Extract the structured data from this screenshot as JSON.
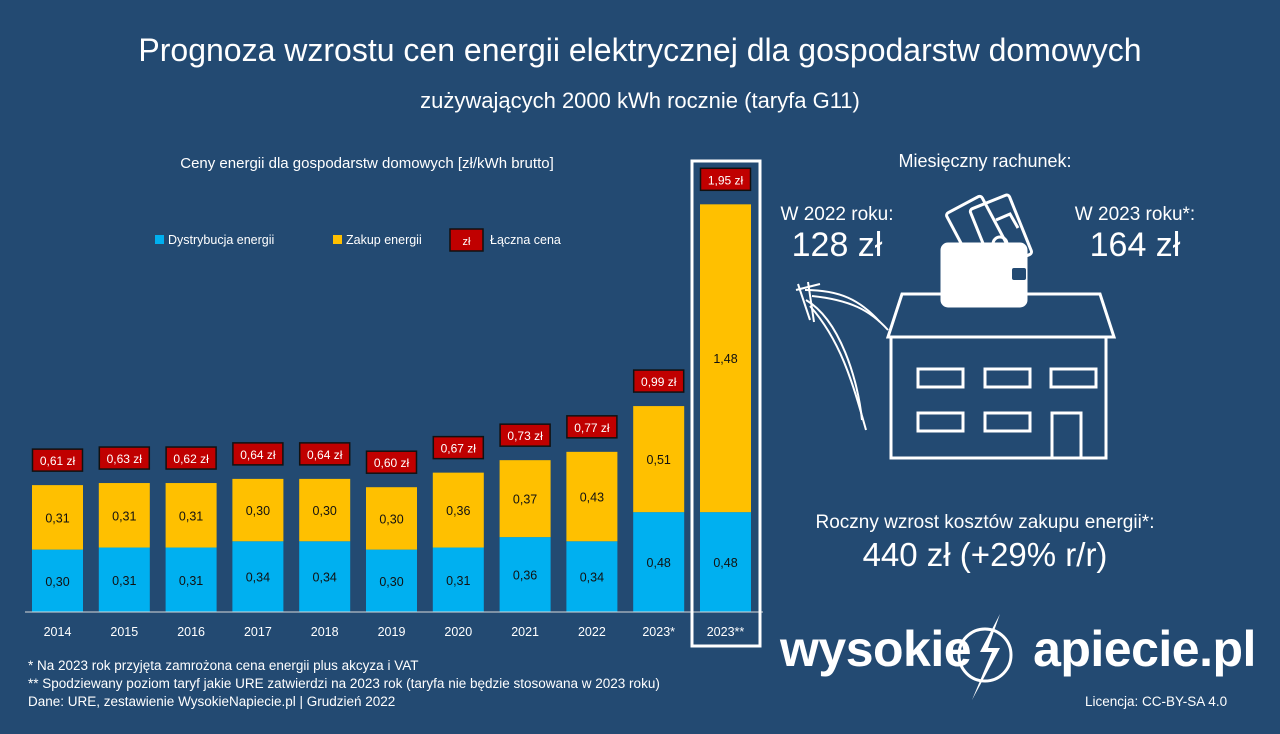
{
  "title": "Prognoza wzrostu cen energii elektrycznej dla gospodarstw domowych",
  "subtitle": "zużywających 2000 kWh rocznie (taryfa G11)",
  "colors": {
    "background": "#234a72",
    "distribution": "#00b0f0",
    "purchase": "#ffc000",
    "total_badge": "#c00000"
  },
  "chart_data": {
    "type": "bar",
    "stacked": true,
    "title": "Ceny energii dla gospodarstw domowych [zł/kWh brutto]",
    "legend": [
      "Dystrybucja energii",
      "Zakup energii",
      "Łączna cena"
    ],
    "legend_badge_text": "zł",
    "categories": [
      "2014",
      "2015",
      "2016",
      "2017",
      "2018",
      "2019",
      "2020",
      "2021",
      "2022",
      "2023*",
      "2023**"
    ],
    "series": [
      {
        "name": "Dystrybucja energii",
        "values": [
          0.3,
          0.31,
          0.31,
          0.34,
          0.34,
          0.3,
          0.31,
          0.36,
          0.34,
          0.48,
          0.48
        ],
        "labels": [
          "0,30",
          "0,31",
          "0,31",
          "0,34",
          "0,34",
          "0,30",
          "0,31",
          "0,36",
          "0,34",
          "0,48",
          "0,48"
        ]
      },
      {
        "name": "Zakup energii",
        "values": [
          0.31,
          0.31,
          0.31,
          0.3,
          0.3,
          0.3,
          0.36,
          0.37,
          0.43,
          0.51,
          1.48
        ],
        "labels": [
          "0,31",
          "0,31",
          "0,31",
          "0,30",
          "0,30",
          "0,30",
          "0,36",
          "0,37",
          "0,43",
          "0,51",
          "1,48"
        ]
      }
    ],
    "totals": [
      0.61,
      0.63,
      0.62,
      0.64,
      0.64,
      0.6,
      0.67,
      0.73,
      0.77,
      0.99,
      1.95
    ],
    "total_labels": [
      "0,61 zł",
      "0,63 zł",
      "0,62 zł",
      "0,64 zł",
      "0,64 zł",
      "0,60 zł",
      "0,67 zł",
      "0,73 zł",
      "0,77 zł",
      "0,99 zł",
      "1,95 zł"
    ],
    "highlighted_category": "2023**",
    "ylim": [
      0,
      2.0
    ]
  },
  "right_panel": {
    "heading": "Miesięczny rachunek:",
    "bill_2022_label": "W 2022 roku:",
    "bill_2022_value": "128 zł",
    "bill_2023_label": "W 2023 roku*:",
    "bill_2023_value": "164 zł",
    "annual_label": "Roczny wzrost kosztów zakupu energii*:",
    "annual_value": "440 zł (+29% r/r)"
  },
  "footnotes": [
    "* Na 2023 rok przyjęta zamrożona cena energii plus akcyza i VAT",
    "** Spodziewany poziom taryf jakie URE zatwierdzi na 2023 rok (taryfa nie będzie stosowana w 2023 roku)",
    "Dane: URE, zestawienie WysokieNapiecie.pl  | Grudzień 2022"
  ],
  "brand": {
    "part1": "wysokie",
    "part2": "apiecie.pl"
  },
  "license": "Licencja: CC-BY-SA 4.0"
}
